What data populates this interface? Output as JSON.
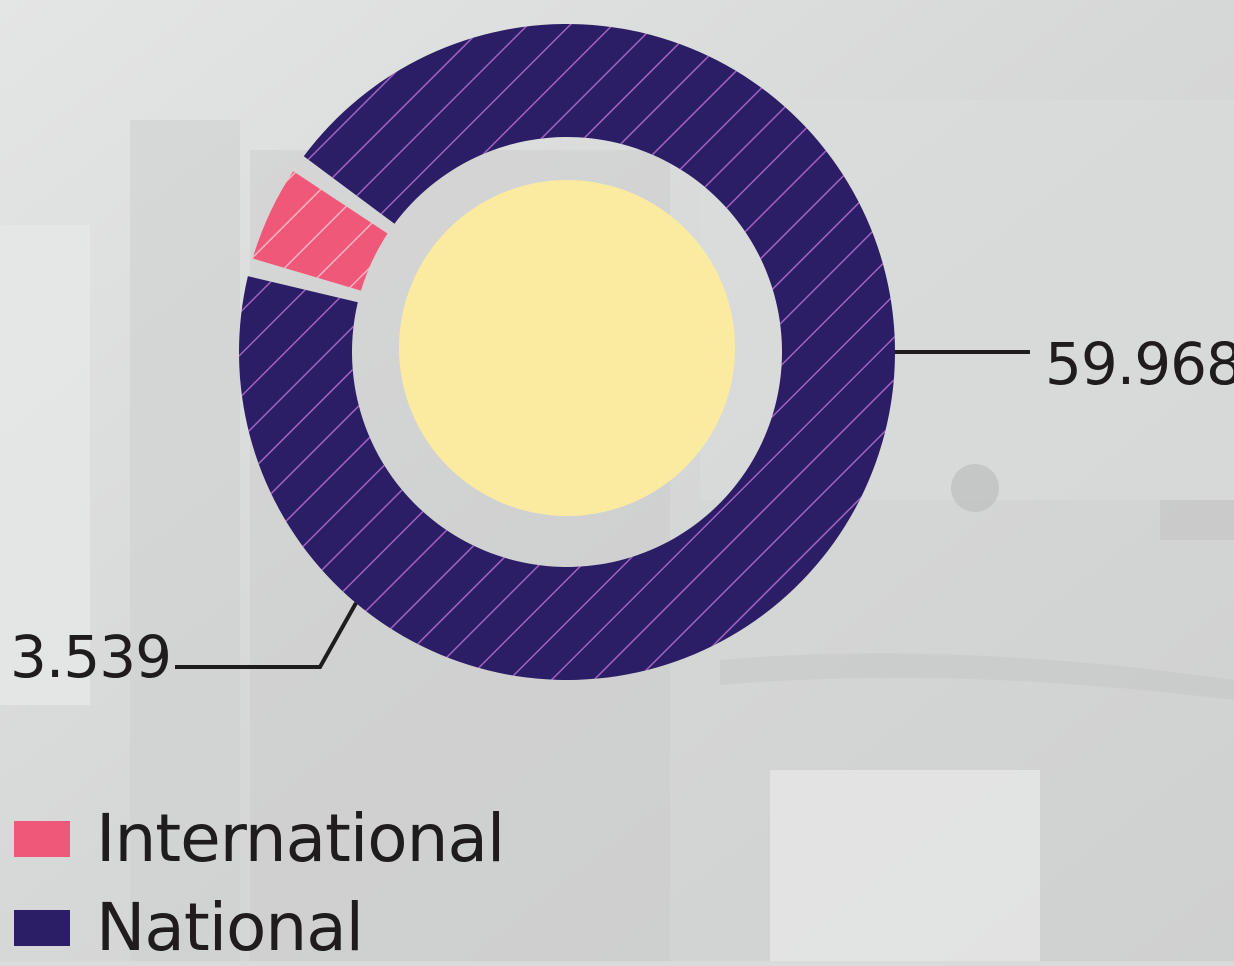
{
  "chart_data": {
    "type": "pie",
    "style": "donut",
    "series": [
      {
        "name": "International",
        "value": 3539,
        "label": "3.539",
        "color": "#f0587a",
        "label_side": "left"
      },
      {
        "name": "National",
        "value": 59968,
        "label": "59.968",
        "color": "#2c1e66",
        "label_side": "right"
      }
    ],
    "center_color": "#fbeba0",
    "hatched": true,
    "legend_placement": "bottom-left"
  },
  "legend": {
    "items": [
      {
        "label": "International",
        "color": "#f0587a"
      },
      {
        "label": "National",
        "color": "#2c1e66"
      }
    ]
  }
}
